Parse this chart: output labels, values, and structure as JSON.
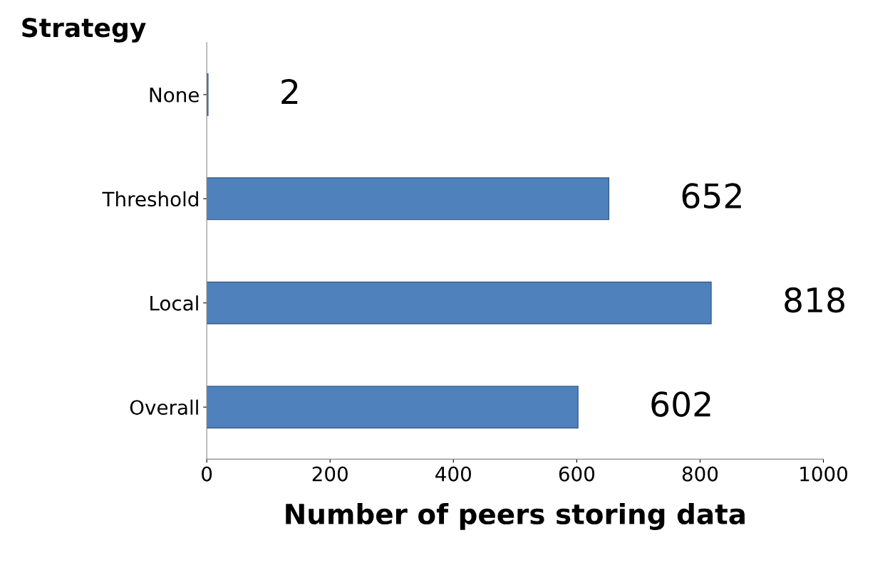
{
  "chart_data": {
    "type": "bar",
    "orientation": "horizontal",
    "ylabel": "Strategy",
    "xlabel": "Number of peers storing data",
    "categories": [
      "None",
      "Threshold",
      "Local",
      "Overall"
    ],
    "values": [
      2,
      652,
      818,
      602
    ],
    "color": "#4f81bd",
    "data_labels": true,
    "xlim": [
      0,
      1000
    ],
    "xticks": [
      0,
      200,
      400,
      600,
      800,
      1000
    ],
    "grid": false
  }
}
